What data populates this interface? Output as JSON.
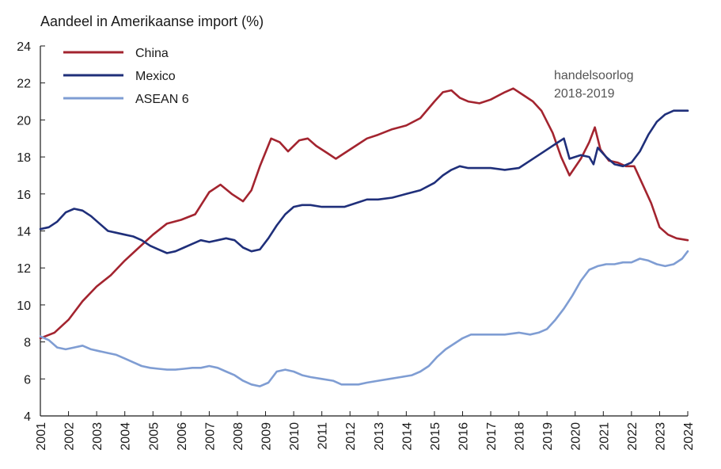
{
  "chart_data": {
    "type": "line",
    "title": "Aandeel in Amerikaanse import (%)",
    "xlabel": "",
    "ylabel": "",
    "ylim": [
      4,
      24
    ],
    "xlim": [
      2001,
      2024
    ],
    "y_ticks": [
      4,
      6,
      8,
      10,
      12,
      14,
      16,
      18,
      20,
      22,
      24
    ],
    "x_ticks": [
      "2001",
      "2002",
      "2003",
      "2004",
      "2005",
      "2006",
      "2007",
      "2008",
      "2009",
      "2010",
      "2011",
      "2012",
      "2013",
      "2014",
      "2015",
      "2016",
      "2017",
      "2018",
      "2019",
      "2020",
      "2021",
      "2022",
      "2023",
      "2024"
    ],
    "grid": false,
    "legend_position": "top-left",
    "annotation": {
      "line1": "handelsoorlog",
      "line2": "2018-2019"
    },
    "series": [
      {
        "name": "China",
        "color": "#a3242f",
        "points": [
          [
            2001.0,
            8.2
          ],
          [
            2001.5,
            8.5
          ],
          [
            2002.0,
            9.2
          ],
          [
            2002.5,
            10.2
          ],
          [
            2003.0,
            11.0
          ],
          [
            2003.5,
            11.6
          ],
          [
            2004.0,
            12.4
          ],
          [
            2004.5,
            13.1
          ],
          [
            2005.0,
            13.8
          ],
          [
            2005.5,
            14.4
          ],
          [
            2006.0,
            14.6
          ],
          [
            2006.5,
            14.9
          ],
          [
            2007.0,
            16.1
          ],
          [
            2007.4,
            16.5
          ],
          [
            2007.8,
            16.0
          ],
          [
            2008.2,
            15.6
          ],
          [
            2008.5,
            16.2
          ],
          [
            2008.8,
            17.5
          ],
          [
            2009.2,
            19.0
          ],
          [
            2009.5,
            18.8
          ],
          [
            2009.8,
            18.3
          ],
          [
            2010.2,
            18.9
          ],
          [
            2010.5,
            19.0
          ],
          [
            2010.8,
            18.6
          ],
          [
            2011.2,
            18.2
          ],
          [
            2011.5,
            17.9
          ],
          [
            2011.8,
            18.2
          ],
          [
            2012.2,
            18.6
          ],
          [
            2012.6,
            19.0
          ],
          [
            2013.0,
            19.2
          ],
          [
            2013.5,
            19.5
          ],
          [
            2014.0,
            19.7
          ],
          [
            2014.5,
            20.1
          ],
          [
            2015.0,
            21.0
          ],
          [
            2015.3,
            21.5
          ],
          [
            2015.6,
            21.6
          ],
          [
            2015.9,
            21.2
          ],
          [
            2016.2,
            21.0
          ],
          [
            2016.6,
            20.9
          ],
          [
            2017.0,
            21.1
          ],
          [
            2017.5,
            21.5
          ],
          [
            2017.8,
            21.7
          ],
          [
            2018.2,
            21.3
          ],
          [
            2018.5,
            21.0
          ],
          [
            2018.8,
            20.5
          ],
          [
            2019.2,
            19.3
          ],
          [
            2019.5,
            18.0
          ],
          [
            2019.8,
            17.0
          ],
          [
            2020.2,
            17.9
          ],
          [
            2020.5,
            18.8
          ],
          [
            2020.7,
            19.6
          ],
          [
            2020.9,
            18.4
          ],
          [
            2021.2,
            17.8
          ],
          [
            2021.5,
            17.7
          ],
          [
            2021.8,
            17.5
          ],
          [
            2022.1,
            17.5
          ],
          [
            2022.4,
            16.5
          ],
          [
            2022.7,
            15.5
          ],
          [
            2023.0,
            14.2
          ],
          [
            2023.3,
            13.8
          ],
          [
            2023.6,
            13.6
          ],
          [
            2024.0,
            13.5
          ]
        ]
      },
      {
        "name": "Mexico",
        "color": "#1f2f7a",
        "points": [
          [
            2001.0,
            14.1
          ],
          [
            2001.3,
            14.2
          ],
          [
            2001.6,
            14.5
          ],
          [
            2001.9,
            15.0
          ],
          [
            2002.2,
            15.2
          ],
          [
            2002.5,
            15.1
          ],
          [
            2002.8,
            14.8
          ],
          [
            2003.1,
            14.4
          ],
          [
            2003.4,
            14.0
          ],
          [
            2003.7,
            13.9
          ],
          [
            2004.0,
            13.8
          ],
          [
            2004.3,
            13.7
          ],
          [
            2004.6,
            13.5
          ],
          [
            2004.9,
            13.2
          ],
          [
            2005.2,
            13.0
          ],
          [
            2005.5,
            12.8
          ],
          [
            2005.8,
            12.9
          ],
          [
            2006.1,
            13.1
          ],
          [
            2006.4,
            13.3
          ],
          [
            2006.7,
            13.5
          ],
          [
            2007.0,
            13.4
          ],
          [
            2007.3,
            13.5
          ],
          [
            2007.6,
            13.6
          ],
          [
            2007.9,
            13.5
          ],
          [
            2008.2,
            13.1
          ],
          [
            2008.5,
            12.9
          ],
          [
            2008.8,
            13.0
          ],
          [
            2009.1,
            13.6
          ],
          [
            2009.4,
            14.3
          ],
          [
            2009.7,
            14.9
          ],
          [
            2010.0,
            15.3
          ],
          [
            2010.3,
            15.4
          ],
          [
            2010.6,
            15.4
          ],
          [
            2011.0,
            15.3
          ],
          [
            2011.4,
            15.3
          ],
          [
            2011.8,
            15.3
          ],
          [
            2012.2,
            15.5
          ],
          [
            2012.6,
            15.7
          ],
          [
            2013.0,
            15.7
          ],
          [
            2013.5,
            15.8
          ],
          [
            2014.0,
            16.0
          ],
          [
            2014.5,
            16.2
          ],
          [
            2015.0,
            16.6
          ],
          [
            2015.3,
            17.0
          ],
          [
            2015.6,
            17.3
          ],
          [
            2015.9,
            17.5
          ],
          [
            2016.2,
            17.4
          ],
          [
            2016.6,
            17.4
          ],
          [
            2017.0,
            17.4
          ],
          [
            2017.5,
            17.3
          ],
          [
            2018.0,
            17.4
          ],
          [
            2018.4,
            17.8
          ],
          [
            2018.8,
            18.2
          ],
          [
            2019.1,
            18.5
          ],
          [
            2019.4,
            18.8
          ],
          [
            2019.6,
            19.0
          ],
          [
            2019.8,
            17.9
          ],
          [
            2020.2,
            18.1
          ],
          [
            2020.5,
            18.0
          ],
          [
            2020.65,
            17.6
          ],
          [
            2020.8,
            18.5
          ],
          [
            2021.1,
            18.0
          ],
          [
            2021.4,
            17.6
          ],
          [
            2021.7,
            17.5
          ],
          [
            2022.0,
            17.7
          ],
          [
            2022.3,
            18.3
          ],
          [
            2022.6,
            19.2
          ],
          [
            2022.9,
            19.9
          ],
          [
            2023.2,
            20.3
          ],
          [
            2023.5,
            20.5
          ],
          [
            2023.8,
            20.5
          ],
          [
            2024.0,
            20.5
          ]
        ]
      },
      {
        "name": "ASEAN 6",
        "color": "#7f9dd3",
        "points": [
          [
            2001.0,
            8.3
          ],
          [
            2001.3,
            8.1
          ],
          [
            2001.6,
            7.7
          ],
          [
            2001.9,
            7.6
          ],
          [
            2002.2,
            7.7
          ],
          [
            2002.5,
            7.8
          ],
          [
            2002.8,
            7.6
          ],
          [
            2003.1,
            7.5
          ],
          [
            2003.4,
            7.4
          ],
          [
            2003.7,
            7.3
          ],
          [
            2004.0,
            7.1
          ],
          [
            2004.3,
            6.9
          ],
          [
            2004.6,
            6.7
          ],
          [
            2004.9,
            6.6
          ],
          [
            2005.2,
            6.55
          ],
          [
            2005.5,
            6.5
          ],
          [
            2005.8,
            6.5
          ],
          [
            2006.1,
            6.55
          ],
          [
            2006.4,
            6.6
          ],
          [
            2006.7,
            6.6
          ],
          [
            2007.0,
            6.7
          ],
          [
            2007.3,
            6.6
          ],
          [
            2007.6,
            6.4
          ],
          [
            2007.9,
            6.2
          ],
          [
            2008.2,
            5.9
          ],
          [
            2008.5,
            5.7
          ],
          [
            2008.8,
            5.6
          ],
          [
            2009.1,
            5.8
          ],
          [
            2009.4,
            6.4
          ],
          [
            2009.7,
            6.5
          ],
          [
            2010.0,
            6.4
          ],
          [
            2010.3,
            6.2
          ],
          [
            2010.6,
            6.1
          ],
          [
            2011.0,
            6.0
          ],
          [
            2011.4,
            5.9
          ],
          [
            2011.7,
            5.7
          ],
          [
            2012.0,
            5.7
          ],
          [
            2012.3,
            5.7
          ],
          [
            2012.6,
            5.8
          ],
          [
            2013.0,
            5.9
          ],
          [
            2013.4,
            6.0
          ],
          [
            2013.8,
            6.1
          ],
          [
            2014.2,
            6.2
          ],
          [
            2014.5,
            6.4
          ],
          [
            2014.8,
            6.7
          ],
          [
            2015.1,
            7.2
          ],
          [
            2015.4,
            7.6
          ],
          [
            2015.7,
            7.9
          ],
          [
            2016.0,
            8.2
          ],
          [
            2016.3,
            8.4
          ],
          [
            2016.6,
            8.4
          ],
          [
            2017.0,
            8.4
          ],
          [
            2017.5,
            8.4
          ],
          [
            2018.0,
            8.5
          ],
          [
            2018.4,
            8.4
          ],
          [
            2018.7,
            8.5
          ],
          [
            2019.0,
            8.7
          ],
          [
            2019.3,
            9.2
          ],
          [
            2019.6,
            9.8
          ],
          [
            2019.9,
            10.5
          ],
          [
            2020.2,
            11.3
          ],
          [
            2020.5,
            11.9
          ],
          [
            2020.8,
            12.1
          ],
          [
            2021.1,
            12.2
          ],
          [
            2021.4,
            12.2
          ],
          [
            2021.7,
            12.3
          ],
          [
            2022.0,
            12.3
          ],
          [
            2022.3,
            12.5
          ],
          [
            2022.6,
            12.4
          ],
          [
            2022.9,
            12.2
          ],
          [
            2023.2,
            12.1
          ],
          [
            2023.5,
            12.2
          ],
          [
            2023.8,
            12.5
          ],
          [
            2024.0,
            12.9
          ]
        ]
      }
    ]
  }
}
